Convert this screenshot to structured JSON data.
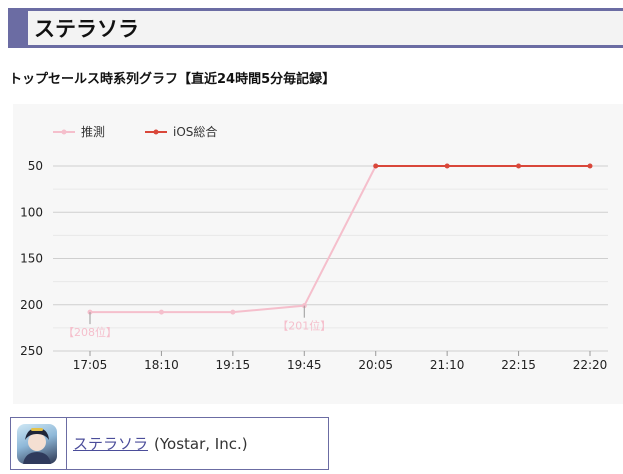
{
  "header": {
    "title": "ステラソラ"
  },
  "subtitle": "トップセールス時系列グラフ【直近24時間5分毎記録】",
  "chart_data": {
    "type": "line",
    "categories": [
      "17:05",
      "18:10",
      "19:15",
      "19:45",
      "20:05",
      "21:10",
      "22:15",
      "22:20"
    ],
    "y_ticks": [
      "50",
      "100",
      "150",
      "200",
      "250"
    ],
    "ylim": [
      250,
      50
    ],
    "y_reversed": true,
    "grid": true,
    "legend_position": "top-left",
    "series": [
      {
        "name": "推測",
        "color": "#f5bfcc",
        "values": [
          208,
          208,
          208,
          201,
          50,
          null,
          null,
          null
        ]
      },
      {
        "name": "iOS総合",
        "color": "#d9473a",
        "values": [
          null,
          null,
          null,
          null,
          50,
          50,
          50,
          50
        ]
      }
    ],
    "annotations": [
      {
        "category": "17:05",
        "value": 208,
        "text": "【208位】"
      },
      {
        "category": "19:45",
        "value": 201,
        "text": "【201位】"
      }
    ]
  },
  "app_card": {
    "icon": "app-icon",
    "name": "ステラソラ",
    "publisher": "(Yostar, Inc.)"
  }
}
